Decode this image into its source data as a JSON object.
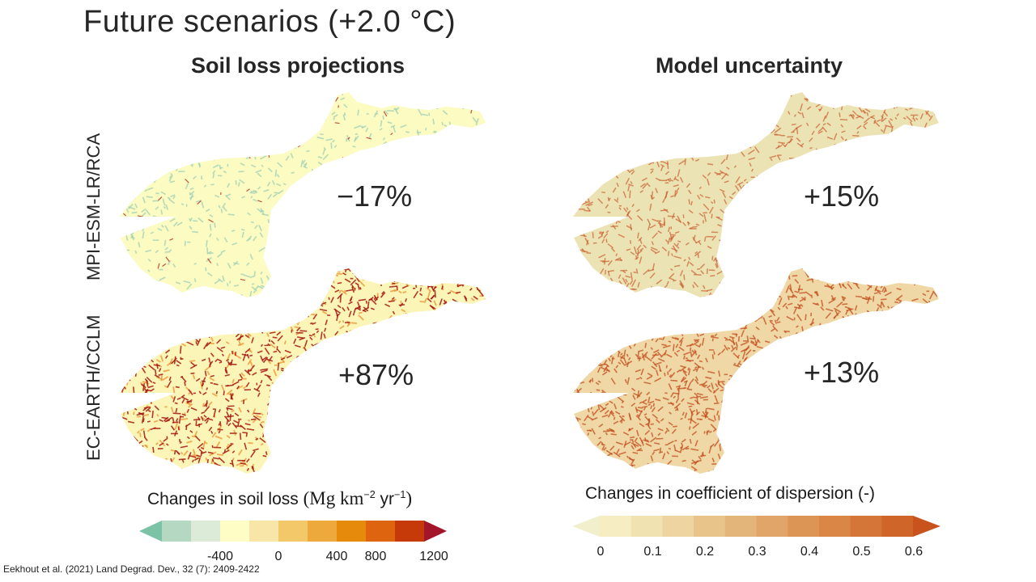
{
  "slide_title": "Future scenarios (+2.0 °C)",
  "columns": {
    "left_title": "Soil loss projections",
    "right_title": "Model uncertainty"
  },
  "rows": {
    "top_label": "MPI-ESM-LR/RCA",
    "bottom_label": "EC-EARTH/CCLM"
  },
  "values": {
    "soil_loss_top": "−17%",
    "soil_loss_bottom": "+87%",
    "uncertainty_top": "+15%",
    "uncertainty_bottom": "+13%"
  },
  "legend_soil_loss": {
    "title_prefix": "Changes in soil loss ",
    "units_base": "(Mg km",
    "units_exp1": "−2",
    "units_mid": " yr",
    "units_exp2": "−1",
    "units_end": ")",
    "ticks": [
      "-400",
      "0",
      "400",
      "800",
      "1200"
    ],
    "colors": [
      "#7cc2a6",
      "#b5d8c2",
      "#dcebd7",
      "#fffdc6",
      "#f8e6a8",
      "#f2c869",
      "#eea93c",
      "#e68a0b",
      "#df6410",
      "#c53a08",
      "#a3152b"
    ]
  },
  "legend_dispersion": {
    "title": "Changes in coefficient of dispersion (-)",
    "ticks": [
      "0",
      "0.1",
      "0.2",
      "0.3",
      "0.4",
      "0.5",
      "0.6"
    ],
    "colors": [
      "#f1efcc",
      "#f6edc3",
      "#f1e2b2",
      "#edd4a0",
      "#e8c38a",
      "#e4b57b",
      "#e1a569",
      "#dd9555",
      "#d98646",
      "#d47637",
      "#cf6529",
      "#c9531d"
    ]
  },
  "map_colors": {
    "soil_top_base": "#fbfbc2",
    "soil_top_speckle": "#9fcfb6",
    "soil_top_red": "#b3281d",
    "soil_bottom_base": "#fbf6b8",
    "soil_bottom_speckle": "#a4160f",
    "soil_bottom_mid": "#e98c2a",
    "unc_top_base": "#ece3b4",
    "unc_top_speckle": "#c8582a",
    "unc_bottom_base": "#efd8a6",
    "unc_bottom_speckle": "#c34d1e"
  },
  "citation": "Eekhout et al. (2021) Land Degrad. Dev., 32 (7): 2409-2422"
}
